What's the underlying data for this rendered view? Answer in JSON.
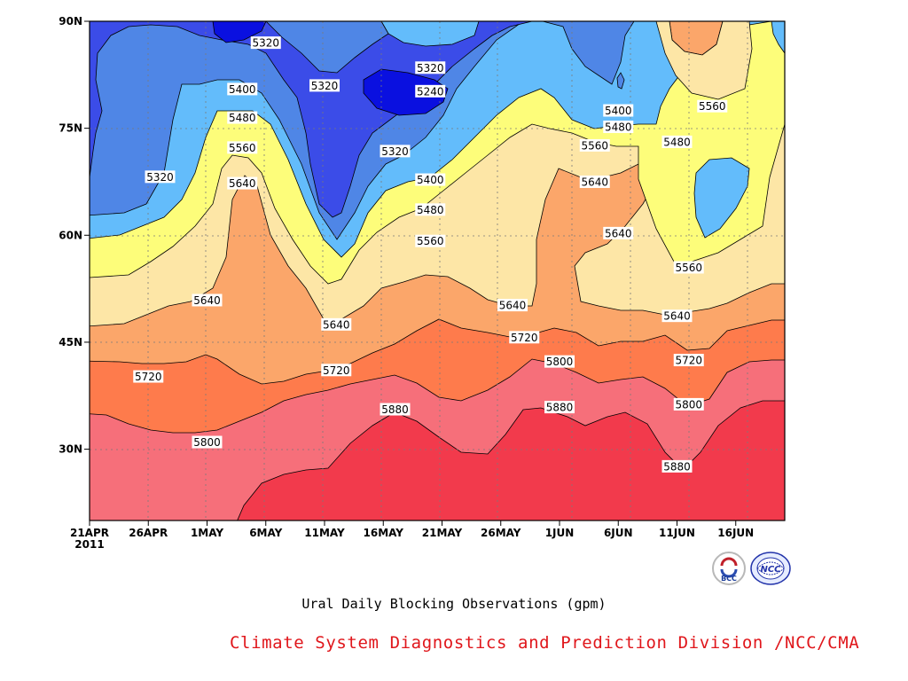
{
  "chart_data": {
    "type": "heatmap",
    "title": "Ural Daily Blocking Observations (gpm)",
    "xlabel": "",
    "ylabel": "",
    "x_tick_labels": [
      "21APR",
      "26APR",
      "1MAY",
      "6MAY",
      "11MAY",
      "16MAY",
      "21MAY",
      "26MAY",
      "1JUN",
      "6JUN",
      "11JUN",
      "16JUN"
    ],
    "x_year_label": "2011",
    "y_tick_labels": [
      "30N",
      "45N",
      "60N",
      "75N",
      "90N"
    ],
    "y_tick_values": [
      30,
      45,
      60,
      75,
      90
    ],
    "ylim": [
      20,
      90
    ],
    "grid": "dotted",
    "contour_levels": [
      5240,
      5320,
      5400,
      5480,
      5560,
      5640,
      5720,
      5800,
      5880
    ],
    "contour_labels": [
      {
        "text": "5320",
        "date": "2011-05-06",
        "lat": 87
      },
      {
        "text": "5320",
        "date": "2011-05-11",
        "lat": 81
      },
      {
        "text": "5320",
        "date": "2011-05-20",
        "lat": 83.5
      },
      {
        "text": "5240",
        "date": "2011-05-20",
        "lat": 80.2
      },
      {
        "text": "5400",
        "date": "2011-05-04",
        "lat": 80.5
      },
      {
        "text": "5480",
        "date": "2011-05-04",
        "lat": 76.5
      },
      {
        "text": "5560",
        "date": "2011-05-04",
        "lat": 72.3
      },
      {
        "text": "5640",
        "date": "2011-05-04",
        "lat": 67.3
      },
      {
        "text": "5320",
        "date": "2011-04-27",
        "lat": 68.2
      },
      {
        "text": "5320",
        "date": "2011-05-17",
        "lat": 71.8
      },
      {
        "text": "5400",
        "date": "2011-05-20",
        "lat": 67.8
      },
      {
        "text": "5480",
        "date": "2011-05-20",
        "lat": 63.6
      },
      {
        "text": "5560",
        "date": "2011-05-20",
        "lat": 59.2
      },
      {
        "text": "5400",
        "date": "2011-06-05",
        "lat": 77.5
      },
      {
        "text": "5480",
        "date": "2011-06-05",
        "lat": 75.2
      },
      {
        "text": "5560",
        "date": "2011-06-03",
        "lat": 72.6
      },
      {
        "text": "5640",
        "date": "2011-06-03",
        "lat": 67.5
      },
      {
        "text": "5640",
        "date": "2011-06-05",
        "lat": 60.3
      },
      {
        "text": "5560",
        "date": "2011-06-13",
        "lat": 78.1
      },
      {
        "text": "5480",
        "date": "2011-06-10",
        "lat": 73.1
      },
      {
        "text": "5560",
        "date": "2011-06-11",
        "lat": 55.5
      },
      {
        "text": "5640",
        "date": "2011-05-01",
        "lat": 50.9
      },
      {
        "text": "5640",
        "date": "2011-05-12",
        "lat": 47.5
      },
      {
        "text": "5640",
        "date": "2011-05-27",
        "lat": 50.2
      },
      {
        "text": "5640",
        "date": "2011-06-10",
        "lat": 48.7
      },
      {
        "text": "5720",
        "date": "2011-04-26",
        "lat": 40.2
      },
      {
        "text": "5720",
        "date": "2011-05-12",
        "lat": 41.1
      },
      {
        "text": "5720",
        "date": "2011-05-28",
        "lat": 45.7
      },
      {
        "text": "5720",
        "date": "2011-06-11",
        "lat": 42.5
      },
      {
        "text": "5800",
        "date": "2011-05-01",
        "lat": 31.0
      },
      {
        "text": "5800",
        "date": "2011-05-31",
        "lat": 42.3
      },
      {
        "text": "5800",
        "date": "2011-06-11",
        "lat": 36.3
      },
      {
        "text": "5880",
        "date": "2011-05-17",
        "lat": 35.6
      },
      {
        "text": "5880",
        "date": "2011-05-31",
        "lat": 35.9
      },
      {
        "text": "5880",
        "date": "2011-06-10",
        "lat": 27.6
      }
    ],
    "fill_colors": [
      "#0a10e0",
      "#3b4ce8",
      "#4f86e6",
      "#63bcfb",
      "#fdfd7a",
      "#fde6a6",
      "#fba66a",
      "#fe7b4c",
      "#f66f7a",
      "#f23a4c"
    ]
  },
  "title": "Ural Daily Blocking Observations (gpm)",
  "credit": "Climate System Diagnostics and Prediction Division /NCC/CMA",
  "logos": {
    "bcc": {
      "text": "BCC",
      "icon": "bcc-logo"
    },
    "ncc": {
      "text": "NCC",
      "icon": "ncc-logo"
    }
  }
}
